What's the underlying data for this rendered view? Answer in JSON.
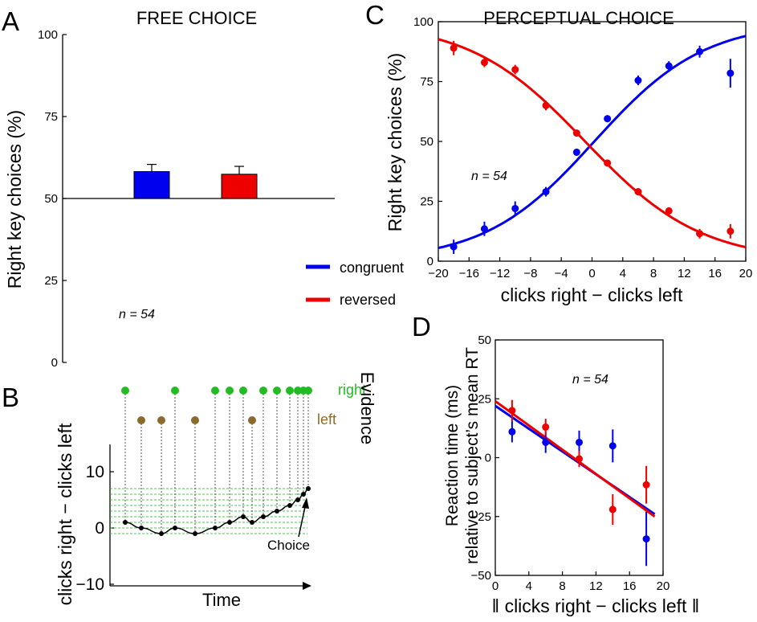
{
  "colors": {
    "congruent": "#0000ee",
    "reversed": "#ee0000",
    "green": "#22bb22",
    "brown": "#8b6a2b",
    "axis": "#000000"
  },
  "chart_data": [
    {
      "panel": "A",
      "type": "bar",
      "title": "FREE CHOICE",
      "ylabel": "Right key choices (%)",
      "ylim": [
        0,
        100
      ],
      "yticks": [
        0,
        25,
        50,
        75,
        100
      ],
      "baseline": 50,
      "categories": [
        "congruent",
        "reversed"
      ],
      "values": [
        58.2,
        57.4
      ],
      "errors": [
        2.2,
        2.4
      ],
      "annotation": "n = 54"
    },
    {
      "panel": "B",
      "type": "line",
      "xlabel": "Time",
      "ylabel": "clicks right − clicks left",
      "yticks": [
        -10,
        0,
        10
      ],
      "ylim": [
        -10,
        13
      ],
      "legend_title": "Evidence",
      "right_label": "right",
      "left_label": "left",
      "choice_label": "Choice",
      "right_click_times": [
        0,
        62,
        112,
        130,
        147,
        172,
        189,
        205,
        215,
        222,
        228
      ],
      "left_click_times": [
        20,
        45,
        87,
        158
      ],
      "trace_times": [
        0,
        20,
        45,
        62,
        87,
        112,
        130,
        147,
        158,
        172,
        189,
        205,
        215,
        222,
        228
      ],
      "trace_values": [
        1,
        0,
        -1,
        0,
        -1,
        0,
        1,
        2,
        1,
        2,
        3,
        4,
        5,
        6,
        7
      ]
    },
    {
      "panel": "C",
      "type": "scatter",
      "title": "PERCEPTUAL CHOICE",
      "xlabel": "clicks right − clicks left",
      "ylabel": "Right key choices (%)",
      "xlim": [
        -20,
        20
      ],
      "ylim": [
        0,
        100
      ],
      "xticks": [
        -20,
        -16,
        -12,
        -8,
        -4,
        0,
        4,
        8,
        12,
        16,
        20
      ],
      "yticks": [
        0,
        25,
        50,
        75,
        100
      ],
      "annotation": "n = 54",
      "series": [
        {
          "name": "congruent",
          "x": [
            -18,
            -14,
            -10,
            -6,
            -2,
            2,
            6,
            10,
            14,
            18
          ],
          "values": [
            6,
            13.5,
            22,
            29,
            45.5,
            59.5,
            75.5,
            81.5,
            87.5,
            78.5
          ],
          "errors": [
            3,
            3,
            3,
            2,
            1.5,
            1.5,
            2,
            2,
            2.5,
            6
          ],
          "fit": {
            "x0": 0.3,
            "k": 0.14
          }
        },
        {
          "name": "reversed",
          "x": [
            -18,
            -14,
            -10,
            -6,
            -2,
            2,
            6,
            10,
            14,
            18
          ],
          "values": [
            89,
            83,
            80,
            65,
            53.5,
            41,
            29,
            21,
            11.5,
            12.5
          ],
          "errors": [
            3,
            2,
            2,
            2,
            1.5,
            1,
            1.5,
            1.5,
            2,
            3
          ],
          "fit": {
            "x0": -0.9,
            "k": -0.133
          }
        }
      ]
    },
    {
      "panel": "D",
      "type": "scatter",
      "xlabel": "‖ clicks right − clicks left ‖",
      "ylabel_line1": "Reaction time (ms)",
      "ylabel_line2": "relative to subject’s mean RT",
      "xlim": [
        0,
        20
      ],
      "ylim": [
        -50,
        50
      ],
      "xticks": [
        0,
        4,
        8,
        12,
        16,
        20
      ],
      "yticks": [
        -50,
        -25,
        0,
        25,
        50
      ],
      "annotation": "n = 54",
      "series": [
        {
          "name": "congruent",
          "x": [
            2,
            6,
            10,
            14,
            18
          ],
          "values": [
            11,
            6.5,
            6.5,
            5,
            -34.5
          ],
          "errors": [
            4.5,
            4.5,
            5,
            7,
            11.5
          ],
          "fit_line": [
            [
              0,
              22
            ],
            [
              19,
              -24
            ]
          ]
        },
        {
          "name": "reversed",
          "x": [
            2,
            6,
            10,
            14,
            18
          ],
          "values": [
            20,
            13,
            -0.5,
            -22,
            -11.5
          ],
          "errors": [
            4.5,
            3.5,
            3.5,
            6.5,
            8
          ],
          "fit_line": [
            [
              0,
              24
            ],
            [
              19,
              -25
            ]
          ]
        }
      ]
    }
  ],
  "legend": {
    "congruent": "congruent",
    "reversed": "reversed"
  },
  "panel_letters": [
    "A",
    "B",
    "C",
    "D"
  ]
}
